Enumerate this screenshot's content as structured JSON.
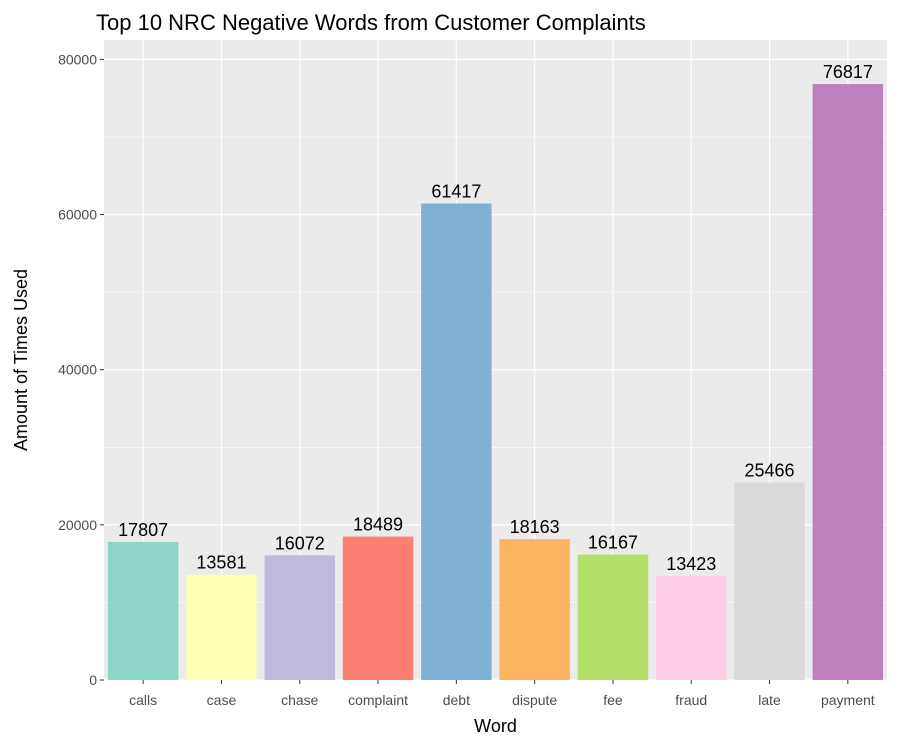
{
  "chart_data": {
    "type": "bar",
    "title": "Top 10 NRC Negative Words from Customer Complaints",
    "xlabel": "Word",
    "ylabel": "Amount of Times Used",
    "categories": [
      "calls",
      "case",
      "chase",
      "complaint",
      "debt",
      "dispute",
      "fee",
      "fraud",
      "late",
      "payment"
    ],
    "values": [
      17807,
      13581,
      16072,
      18489,
      61417,
      18163,
      16167,
      13423,
      25466,
      76817
    ],
    "colors": [
      "#8DD3C7",
      "#FFFFB3",
      "#BEBADA",
      "#FB8072",
      "#80B1D3",
      "#FDB462",
      "#B3DE69",
      "#FCCDE5",
      "#D9D9D9",
      "#BC80BD"
    ],
    "ylim": [
      0,
      80000
    ],
    "yticks": [
      0,
      20000,
      40000,
      60000,
      80000
    ],
    "grid": true,
    "panel_background": "#EBEBEB",
    "legend": "none"
  }
}
